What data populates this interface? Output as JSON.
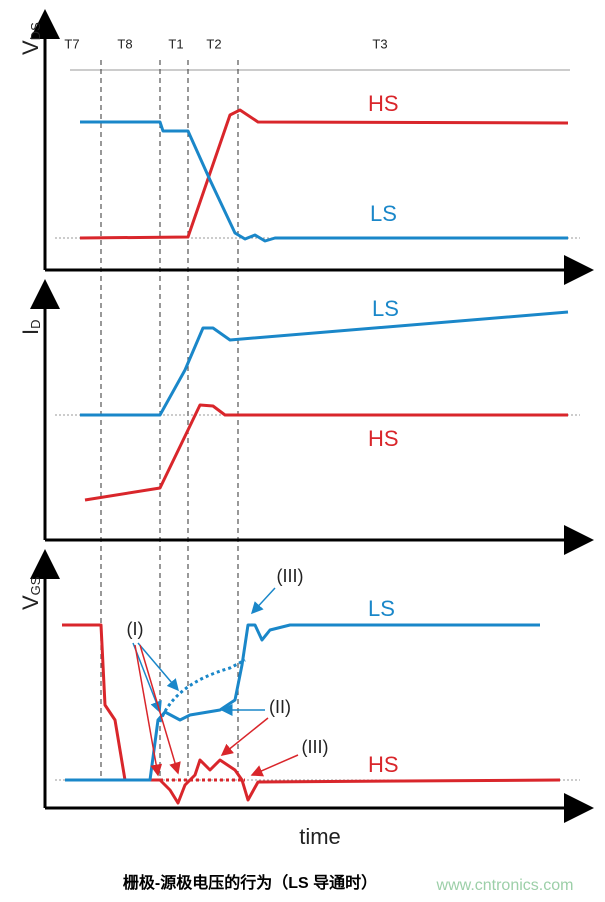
{
  "phases": [
    "T7",
    "T8",
    "T1",
    "T2",
    "T3"
  ],
  "panels": [
    {
      "axis_label": {
        "main": "V",
        "sub": "DS"
      },
      "curve_labels": [
        "HS",
        "LS"
      ]
    },
    {
      "axis_label": {
        "main": "I",
        "sub": "D"
      },
      "curve_labels": [
        "LS",
        "HS"
      ]
    },
    {
      "axis_label": {
        "main": "V",
        "sub": "GS"
      },
      "curve_labels": [
        "LS",
        "HS"
      ],
      "annotations": [
        "(I)",
        "(II)",
        "(III)",
        "(III)"
      ]
    }
  ],
  "x_axis_label": "time",
  "caption": "栅极-源极电压的行为（LS 导通时）",
  "watermark": "www.cntronics.com"
}
